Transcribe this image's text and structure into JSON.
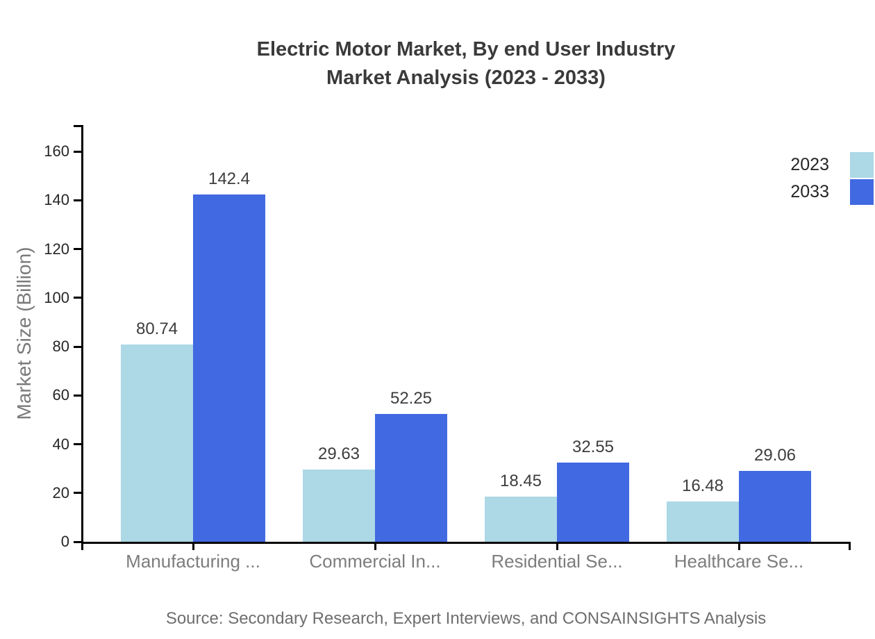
{
  "page": {
    "title_line1": "Electric Motor Market, By end User Industry",
    "title_line2": "Market Analysis (2023 - 2033)",
    "source_note": "Source: Secondary Research, Expert Interviews, and CONSAINSIGHTS Analysis"
  },
  "chart_data": {
    "type": "bar",
    "title": "Electric Motor Market, By end User Industry Market Analysis (2023 - 2033)",
    "ylabel": "Market Size (Billion)",
    "xlabel": "",
    "categories": [
      "Manufacturing ...",
      "Commercial In...",
      "Residential Se...",
      "Healthcare Se..."
    ],
    "series": [
      {
        "name": "2023",
        "color": "#add8e6",
        "values": [
          80.74,
          29.63,
          18.45,
          16.48
        ],
        "value_labels": [
          "80.74",
          "29.63",
          "18.45",
          "16.48"
        ]
      },
      {
        "name": "2033",
        "color": "#4169e1",
        "values": [
          142.4,
          52.25,
          32.55,
          29.06
        ],
        "value_labels": [
          "142.4",
          "52.25",
          "32.55",
          "29.06"
        ]
      }
    ],
    "ylim": [
      0,
      160
    ],
    "yticks": [
      0,
      20,
      40,
      60,
      80,
      100,
      120,
      140,
      160
    ],
    "legend": {
      "position": "top-right",
      "entries": [
        "2023",
        "2033"
      ]
    },
    "grid": false,
    "axis_color": "#000000",
    "text_colors": {
      "title": "#3a3a3a",
      "tick_labels": "#262626",
      "category_labels": "#7d7d7d",
      "value_labels": "#3d3d3d",
      "axis_title": "#7a7a7a",
      "legend_labels": "#262626",
      "source": "#6e6e6e"
    }
  }
}
